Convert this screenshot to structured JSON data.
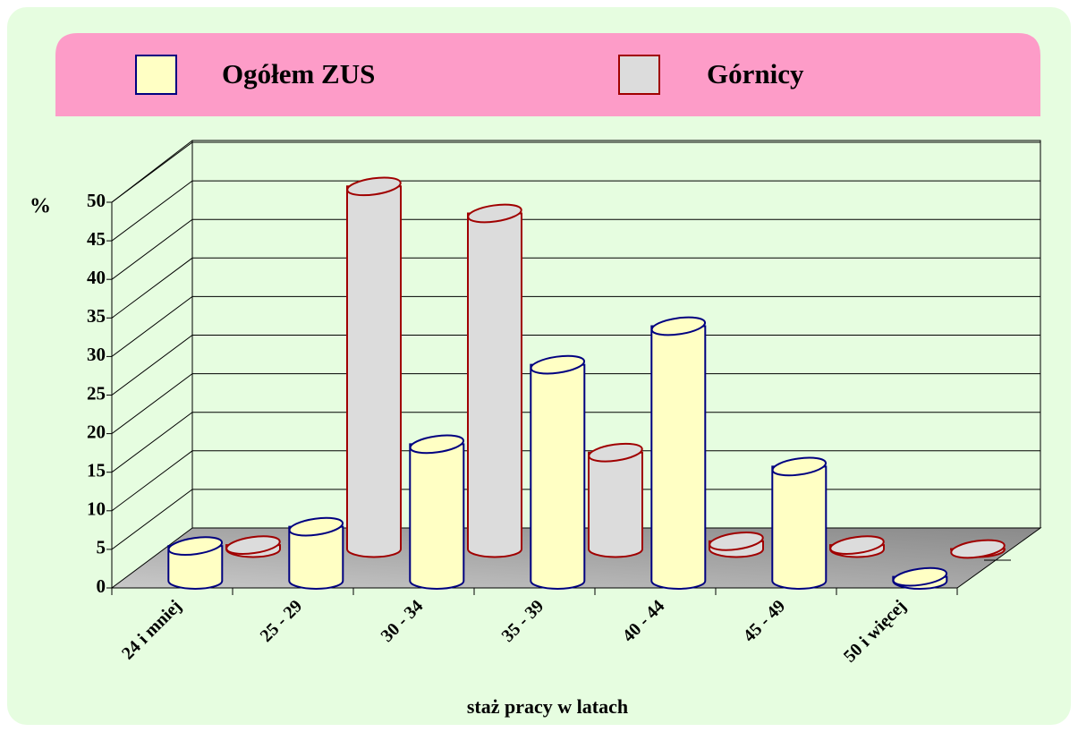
{
  "chart_data": {
    "type": "bar3d",
    "categories": [
      "24 i mniej",
      "25 - 29",
      "30 - 34",
      "35 - 39",
      "40 - 44",
      "45 - 49",
      "50 i więcej"
    ],
    "series": [
      {
        "name": "Ogółem ZUS",
        "color": "#ffffc4",
        "edge_color": "#000080",
        "values": [
          4.5,
          7,
          17.7,
          28,
          33,
          14.8,
          0.5
        ]
      },
      {
        "name": "Górnicy",
        "color": "#dcdcdc",
        "edge_color": "#a00000",
        "values": [
          0.5,
          47,
          43.5,
          12.5,
          1,
          0.5,
          0
        ]
      }
    ],
    "y_label": "%",
    "x_label": "staż pracy w latach",
    "ylim": [
      0,
      50
    ],
    "yticks": [
      0,
      5,
      10,
      15,
      20,
      25,
      30,
      35,
      40,
      45,
      50
    ],
    "grid": true
  }
}
